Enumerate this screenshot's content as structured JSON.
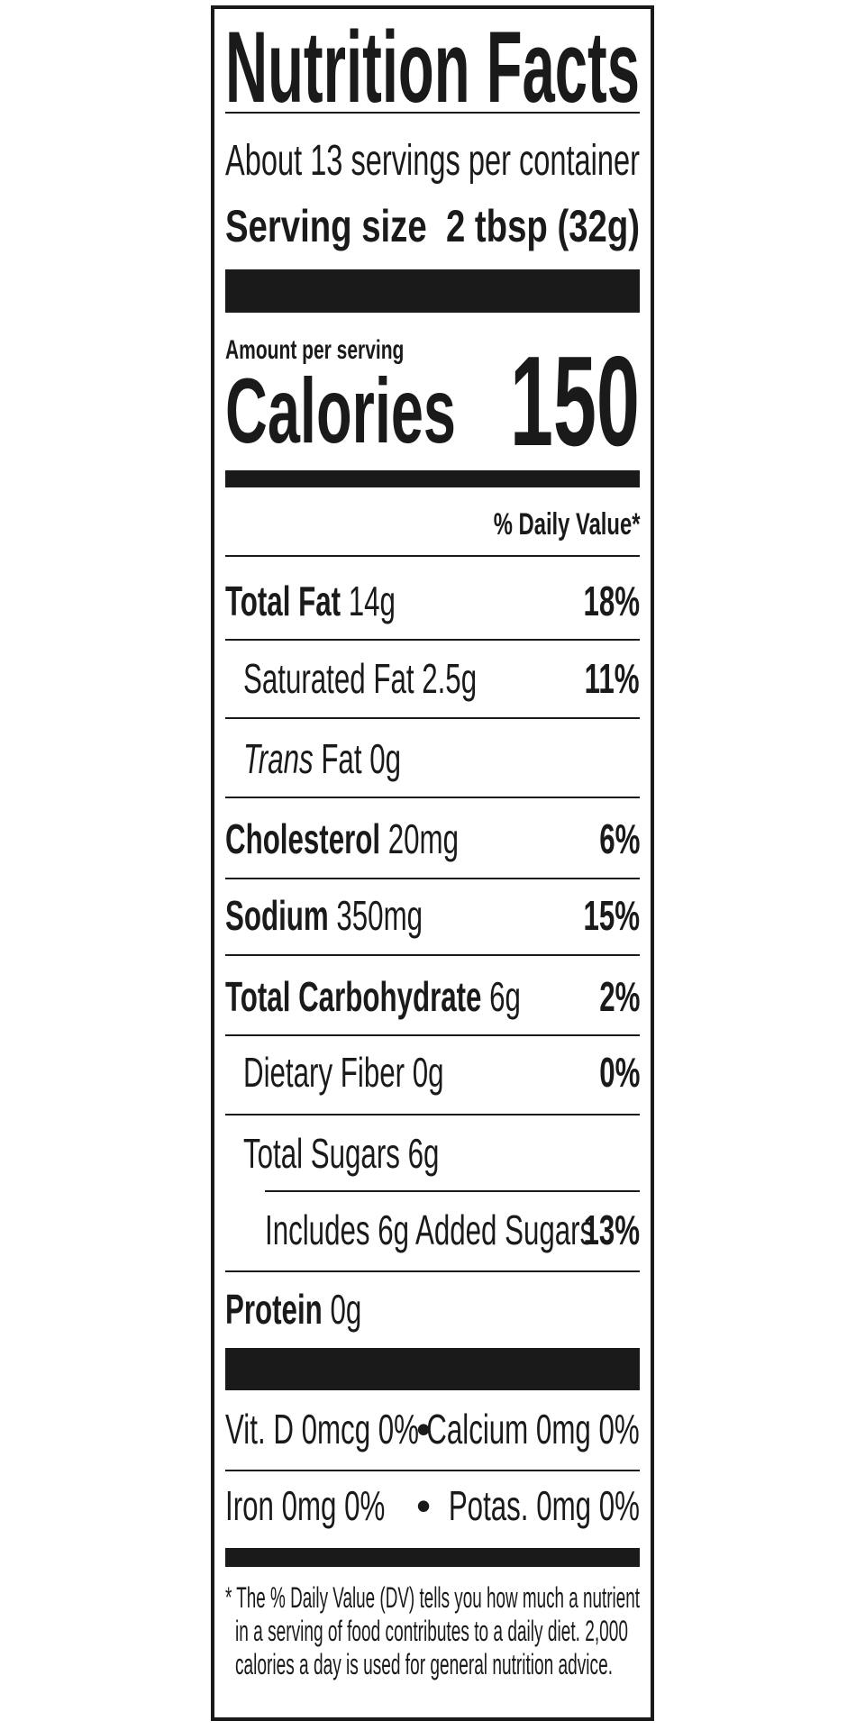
{
  "label": {
    "title": "Nutrition Facts",
    "servings_per_container": "About 13 servings per container",
    "serving_size_label": "Serving size",
    "serving_size_value": "2 tbsp (32g)",
    "amount_per_serving": "Amount per serving",
    "calories_label": "Calories",
    "calories_value": "150",
    "dv_header": "% Daily Value*",
    "nutrients": [
      {
        "name": "Total Fat",
        "amount": "14g",
        "dv": "18%"
      },
      {
        "name": "Saturated Fat",
        "amount": "2.5g",
        "dv": "11%"
      },
      {
        "name_italic": "Trans",
        "name": "Fat",
        "amount": "0g"
      },
      {
        "name": "Cholesterol",
        "amount": "20mg",
        "dv": "6%"
      },
      {
        "name": "Sodium",
        "amount": "350mg",
        "dv": "15%"
      },
      {
        "name": "Total Carbohydrate",
        "amount": "6g",
        "dv": "2%"
      },
      {
        "name": "Dietary Fiber",
        "amount": "0g",
        "dv": "0%"
      },
      {
        "name": "Total Sugars",
        "amount": "6g"
      },
      {
        "name": "Includes 6g Added Sugars",
        "dv": "13%"
      },
      {
        "name": "Protein",
        "amount": "0g"
      }
    ],
    "micronutrients": [
      {
        "left": "Vit. D 0mcg 0%",
        "right": "Calcium 0mg 0%"
      },
      {
        "left": "Iron 0mg 0%",
        "right": "Potas. 0mg 0%"
      }
    ],
    "separator": "•",
    "footnote": [
      "* The % Daily Value (DV) tells you how much a nutrient",
      "in a serving of food contributes to a daily diet. 2,000",
      "calories a day is used for general nutrition advice."
    ]
  },
  "colors": {
    "ink": "#1a1a1a",
    "background": "#ffffff"
  }
}
